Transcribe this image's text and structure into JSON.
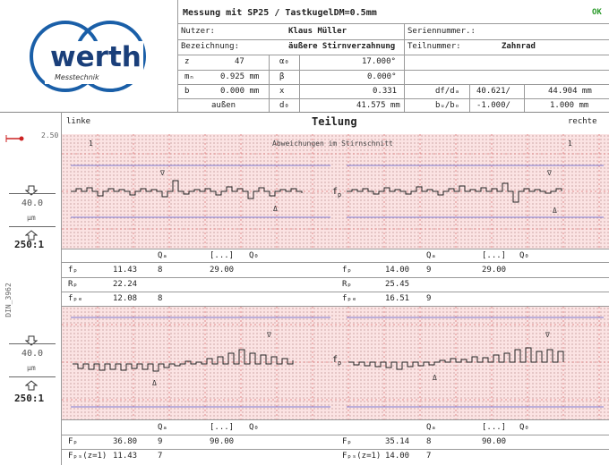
{
  "header": {
    "title": "Messung mit SP25 / TastkugelDM=0.5mm",
    "status": "OK",
    "nutzer_label": "Nutzer:",
    "nutzer_value": "Klaus Müller",
    "serien_label": "Seriennummer.:",
    "bezeichnung_label": "Bezeichnung:",
    "bezeichnung_value": "äußere Stirnverzahnung",
    "teil_label": "Teilnummer:",
    "teil_value": "Zahnrad",
    "rows": [
      [
        "z",
        "47",
        "α₀",
        "17.000°"
      ],
      [
        "mₙ",
        "0.925 mm",
        "β",
        "0.000°"
      ],
      [
        "b",
        "0.000 mm",
        "x",
        "0.331",
        "df/dₐ",
        "40.621/",
        "44.904 mm"
      ],
      [
        "",
        "außen",
        "",
        "d₀",
        "41.575 mm",
        "bᵤ/bₒ",
        "-1.000/",
        "1.000 mm"
      ]
    ]
  },
  "logo": {
    "name": "werth",
    "sub": "Messtechnik"
  },
  "left_panel": {
    "top_scale": "2.50",
    "scale1": "40.0",
    "unit1": "μm",
    "ratio1": "250:1",
    "scale2": "40.0",
    "unit2": "μm",
    "ratio2": "250:1",
    "vertical": "DIN_3962"
  },
  "section": {
    "left_label": "linke",
    "right_label": "rechte",
    "title": "Teilung",
    "subtitle": "Abweichungen im Stirnschnitt",
    "tooth1": "1",
    "fp_mark": "f",
    "fp_sub": "p"
  },
  "table1": {
    "cols": [
      "Qₐ",
      "[...]",
      "Q₀"
    ],
    "rows_left": [
      [
        "fₚ",
        "11.43",
        "8",
        "29.00"
      ],
      [
        "Rₚ",
        "22.24",
        "",
        ""
      ],
      [
        "fₚₑ",
        "12.08",
        "8",
        ""
      ]
    ],
    "rows_right": [
      [
        "fₚ",
        "14.00",
        "9",
        "29.00"
      ],
      [
        "Rₚ",
        "25.45",
        "",
        ""
      ],
      [
        "fₚₑ",
        "16.51",
        "9",
        ""
      ]
    ]
  },
  "table2": {
    "cols": [
      "Qₐ",
      "[...]",
      "Q₀"
    ],
    "rows_left": [
      [
        "Fₚ",
        "36.80",
        "9",
        "90.00"
      ],
      [
        "Fₚₛ(z=1)",
        "11.43",
        "7",
        ""
      ]
    ],
    "rows_right": [
      [
        "Fₚ",
        "35.14",
        "8",
        "90.00"
      ],
      [
        "Fₚₛ(z=1)",
        "14.00",
        "7",
        ""
      ]
    ]
  }
}
